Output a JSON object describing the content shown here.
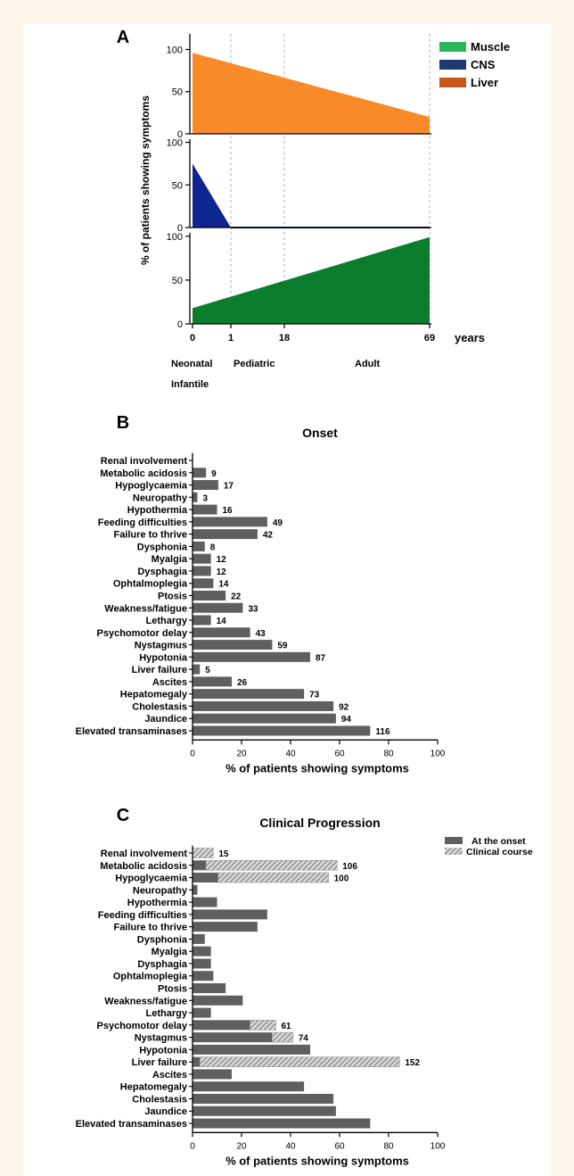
{
  "panels": {
    "a": "A",
    "b": "B",
    "c": "C"
  },
  "colors": {
    "muscle": "#0b7d2c",
    "muscle_legend": "#2bb45a",
    "cns": "#0f2590",
    "cns_legend": "#1d3b73",
    "liver": "#f98a2a",
    "liver_legend": "#c9571c",
    "bar": "#5f5f5f",
    "hatch": "#c4c4c4",
    "page_background": "#fcf7e8"
  },
  "chart_data": [
    {
      "type": "area",
      "ylabel": "% of patients showing symptoms",
      "x_unit_label": "years",
      "x_ticks": [
        0,
        1,
        18,
        69
      ],
      "x_tick_labels": [
        "0",
        "1",
        "18",
        "69"
      ],
      "y_ticks": [
        0,
        50,
        100
      ],
      "ylim": [
        0,
        110
      ],
      "age_groups": [
        "Neonatal",
        "Pediatric",
        "Adult",
        "Infantile"
      ],
      "legend": [
        "Muscle",
        "CNS",
        "Liver"
      ],
      "legend_position": "top-right",
      "grid": "dashed vertical lines at 1, 18 and 69 years",
      "series": [
        {
          "name": "Liver",
          "x": [
            0,
            69
          ],
          "y": [
            96,
            20
          ]
        },
        {
          "name": "CNS",
          "x": [
            0,
            1,
            69
          ],
          "y": [
            75,
            0,
            0
          ]
        },
        {
          "name": "Muscle",
          "x": [
            0,
            69
          ],
          "y": [
            18,
            99
          ]
        }
      ]
    },
    {
      "type": "bar",
      "orientation": "horizontal",
      "title": "Onset",
      "xlabel": "% of patients showing symptoms",
      "xlim": [
        0,
        100
      ],
      "x_ticks": [
        0,
        20,
        40,
        60,
        80,
        100
      ],
      "categories": [
        "Renal involvement",
        "Metabolic acidosis",
        "Hypoglycaemia",
        "Neuropathy",
        "Hypothermia",
        "Feeding difficulties",
        "Failure to thrive",
        "Dysphonia",
        "Myalgia",
        "Dysphagia",
        "Ophtalmoplegia",
        "Ptosis",
        "Weakness/fatigue",
        "Lethargy",
        "Psychomotor delay",
        "Nystagmus",
        "Hypotonia",
        "Liver failure",
        "Ascites",
        "Hepatomegaly",
        "Cholestasis",
        "Jaundice",
        "Elevated transaminases"
      ],
      "values": [
        0,
        5.5,
        10.5,
        2,
        10,
        30.5,
        26.5,
        5,
        7.5,
        7.5,
        8.5,
        13.5,
        20.5,
        7.5,
        23.5,
        32.5,
        48,
        3,
        16,
        45.5,
        57.5,
        58.5,
        72.5
      ],
      "labels": [
        "",
        "9",
        "17",
        "3",
        "16",
        "49",
        "42",
        "8",
        "12",
        "12",
        "14",
        "22",
        "33",
        "14",
        "43",
        "59",
        "87",
        "5",
        "26",
        "73",
        "92",
        "94",
        "116"
      ]
    },
    {
      "type": "bar",
      "orientation": "horizontal",
      "stacked": true,
      "title": "Clinical Progression",
      "xlabel": "% of patients showing symptoms",
      "xlim": [
        0,
        100
      ],
      "x_ticks": [
        0,
        20,
        40,
        60,
        80,
        100
      ],
      "legend_position": "top-right",
      "categories": [
        "Renal involvement",
        "Metabolic acidosis",
        "Hypoglycaemia",
        "Neuropathy",
        "Hypothermia",
        "Feeding difficulties",
        "Failure to thrive",
        "Dysphonia",
        "Myalgia",
        "Dysphagia",
        "Ophtalmoplegia",
        "Ptosis",
        "Weakness/fatigue",
        "Lethargy",
        "Psychomotor delay",
        "Nystagmus",
        "Hypotonia",
        "Liver failure",
        "Ascites",
        "Hepatomegaly",
        "Cholestasis",
        "Jaundice",
        "Elevated transaminases"
      ],
      "series": [
        {
          "name": "At the onset",
          "values": [
            0,
            5.5,
            10.5,
            2,
            10,
            30.5,
            26.5,
            5,
            7.5,
            7.5,
            8.5,
            13.5,
            20.5,
            7.5,
            23.5,
            32.5,
            48,
            3,
            16,
            45.5,
            57.5,
            58.5,
            72.5
          ]
        },
        {
          "name": "Clinical course",
          "values": [
            8.5,
            53.5,
            45,
            0,
            0,
            0,
            0,
            0,
            0,
            0,
            0,
            0,
            0,
            0,
            10.5,
            8.5,
            0,
            81.5,
            0,
            0,
            0,
            0,
            0
          ]
        }
      ],
      "labels": [
        "15",
        "106",
        "100",
        "",
        "",
        "",
        "",
        "",
        "",
        "",
        "",
        "",
        "",
        "",
        "61",
        "74",
        "",
        "152",
        "",
        "",
        "",
        "",
        ""
      ]
    }
  ]
}
